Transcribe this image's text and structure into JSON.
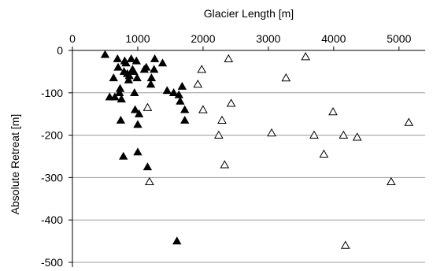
{
  "chart_data": {
    "type": "scatter",
    "title": "",
    "xlabel": "Glacier Length [m]",
    "ylabel": "Absolute Retreat [m]",
    "x_axis_position": "top",
    "xlim": [
      0,
      5400
    ],
    "ylim": [
      -500,
      0
    ],
    "xticks": [
      0,
      1000,
      2000,
      3000,
      4000,
      5000
    ],
    "yticks": [
      0,
      -100,
      -200,
      -300,
      -400,
      -500
    ],
    "grid": "horizontal",
    "legend": "none",
    "colors": {
      "filled": "#000000",
      "open": "#000000",
      "grid": "#9a9a9a"
    },
    "series": [
      {
        "marker": "filled-triangle",
        "points": [
          [
            500,
            -10
          ],
          [
            570,
            -110
          ],
          [
            630,
            -65
          ],
          [
            650,
            -110
          ],
          [
            690,
            -20
          ],
          [
            700,
            -40
          ],
          [
            720,
            -100
          ],
          [
            730,
            -90
          ],
          [
            740,
            -165
          ],
          [
            750,
            -115
          ],
          [
            780,
            -250
          ],
          [
            790,
            -50
          ],
          [
            800,
            -25
          ],
          [
            820,
            -30
          ],
          [
            840,
            -55
          ],
          [
            860,
            -70
          ],
          [
            870,
            -60
          ],
          [
            900,
            -20
          ],
          [
            920,
            -45
          ],
          [
            940,
            -50
          ],
          [
            950,
            -100
          ],
          [
            960,
            -140
          ],
          [
            980,
            -25
          ],
          [
            990,
            -65
          ],
          [
            1000,
            -175
          ],
          [
            1000,
            -240
          ],
          [
            1020,
            -150
          ],
          [
            1100,
            -45
          ],
          [
            1130,
            -40
          ],
          [
            1150,
            -275
          ],
          [
            1200,
            -80
          ],
          [
            1210,
            -65
          ],
          [
            1250,
            -45
          ],
          [
            1260,
            -20
          ],
          [
            1380,
            -30
          ],
          [
            1450,
            -95
          ],
          [
            1550,
            -100
          ],
          [
            1600,
            -450
          ],
          [
            1630,
            -105
          ],
          [
            1650,
            -120
          ],
          [
            1680,
            -85
          ],
          [
            1720,
            -165
          ],
          [
            1720,
            -140
          ]
        ]
      },
      {
        "marker": "open-triangle",
        "points": [
          [
            1150,
            -135
          ],
          [
            1180,
            -310
          ],
          [
            1920,
            -80
          ],
          [
            1980,
            -45
          ],
          [
            2000,
            -140
          ],
          [
            2240,
            -200
          ],
          [
            2290,
            -165
          ],
          [
            2330,
            -270
          ],
          [
            2390,
            -20
          ],
          [
            2430,
            -125
          ],
          [
            3050,
            -195
          ],
          [
            3270,
            -65
          ],
          [
            3570,
            -15
          ],
          [
            3700,
            -200
          ],
          [
            3850,
            -245
          ],
          [
            3990,
            -145
          ],
          [
            4150,
            -200
          ],
          [
            4180,
            -460
          ],
          [
            4360,
            -205
          ],
          [
            4880,
            -310
          ],
          [
            5150,
            -170
          ]
        ]
      }
    ]
  }
}
